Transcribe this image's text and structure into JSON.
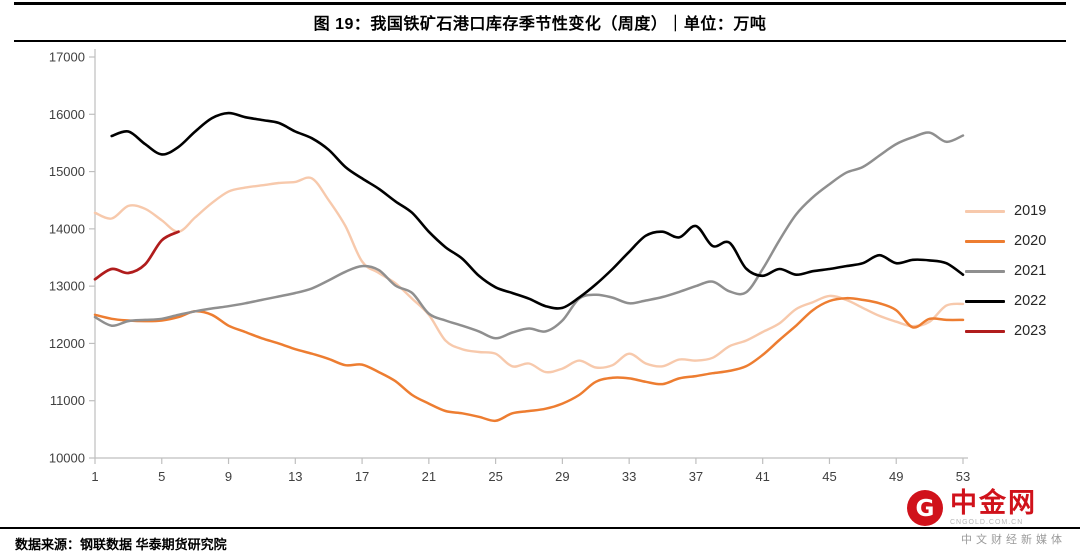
{
  "footer": {
    "source": "数据来源：钢联数据  华泰期货研究院"
  },
  "watermark": {
    "brand": "中金网",
    "domain": "CNGOLD.COM.CN",
    "tagline": "中文财经新媒体",
    "logo_letter": "G"
  },
  "chart_data": {
    "type": "line",
    "title": "图 19：我国铁矿石港口库存季节性变化（周度）｜单位：万吨",
    "xlabel": "",
    "ylabel": "",
    "unit": "万吨",
    "xlim": [
      1,
      53
    ],
    "ylim": [
      10000,
      17000
    ],
    "grid": false,
    "legend_position": "right",
    "xticks": [
      1,
      5,
      9,
      13,
      17,
      21,
      25,
      29,
      33,
      37,
      41,
      45,
      49,
      53
    ],
    "yticks": [
      10000,
      11000,
      12000,
      13000,
      14000,
      15000,
      16000,
      17000
    ],
    "series": [
      {
        "name": "2019",
        "color": "#f7c9ac",
        "line_width": 2.4,
        "start_week": 1,
        "values": [
          14280,
          14180,
          14400,
          14350,
          14150,
          13950,
          14200,
          14450,
          14650,
          14720,
          14760,
          14800,
          14820,
          14880,
          14500,
          14050,
          13430,
          13230,
          13050,
          12780,
          12500,
          12050,
          11900,
          11850,
          11820,
          11600,
          11650,
          11500,
          11560,
          11700,
          11580,
          11620,
          11820,
          11650,
          11600,
          11720,
          11700,
          11750,
          11950,
          12050,
          12200,
          12350,
          12600,
          12720,
          12830,
          12760,
          12620,
          12480,
          12380,
          12300,
          12380,
          12660,
          12690
        ]
      },
      {
        "name": "2020",
        "color": "#ed7d31",
        "line_width": 2.5,
        "start_week": 1,
        "values": [
          12500,
          12430,
          12400,
          12390,
          12400,
          12460,
          12560,
          12500,
          12310,
          12200,
          12090,
          12000,
          11900,
          11820,
          11730,
          11620,
          11630,
          11500,
          11340,
          11100,
          10950,
          10820,
          10780,
          10720,
          10650,
          10780,
          10820,
          10860,
          10950,
          11100,
          11330,
          11400,
          11390,
          11330,
          11290,
          11390,
          11430,
          11480,
          11520,
          11600,
          11800,
          12060,
          12310,
          12580,
          12740,
          12790,
          12760,
          12700,
          12580,
          12280,
          12430,
          12410,
          12410
        ]
      },
      {
        "name": "2021",
        "color": "#8f8f8f",
        "line_width": 2.5,
        "start_week": 1,
        "values": [
          12460,
          12310,
          12390,
          12410,
          12430,
          12500,
          12560,
          12610,
          12650,
          12700,
          12760,
          12820,
          12880,
          12960,
          13100,
          13250,
          13350,
          13280,
          13010,
          12880,
          12520,
          12400,
          12310,
          12210,
          12090,
          12190,
          12260,
          12210,
          12400,
          12780,
          12850,
          12800,
          12700,
          12750,
          12810,
          12900,
          13000,
          13080,
          12910,
          12890,
          13300,
          13800,
          14250,
          14550,
          14780,
          14980,
          15080,
          15280,
          15480,
          15600,
          15680,
          15520,
          15630
        ]
      },
      {
        "name": "2022",
        "color": "#000000",
        "line_width": 2.6,
        "start_week": 2,
        "values": [
          15620,
          15700,
          15480,
          15300,
          15430,
          15700,
          15930,
          16020,
          15950,
          15900,
          15850,
          15700,
          15580,
          15380,
          15080,
          14880,
          14700,
          14480,
          14280,
          13950,
          13680,
          13480,
          13180,
          12980,
          12880,
          12780,
          12650,
          12620,
          12800,
          13030,
          13300,
          13600,
          13880,
          13950,
          13850,
          14050,
          13700,
          13760,
          13310,
          13180,
          13300,
          13200,
          13260,
          13300,
          13350,
          13400,
          13540,
          13400,
          13460,
          13450,
          13400,
          13200
        ]
      },
      {
        "name": "2023",
        "color": "#b01c1c",
        "line_width": 2.7,
        "start_week": 1,
        "values": [
          13120,
          13300,
          13230,
          13380,
          13800,
          13950
        ]
      }
    ]
  }
}
